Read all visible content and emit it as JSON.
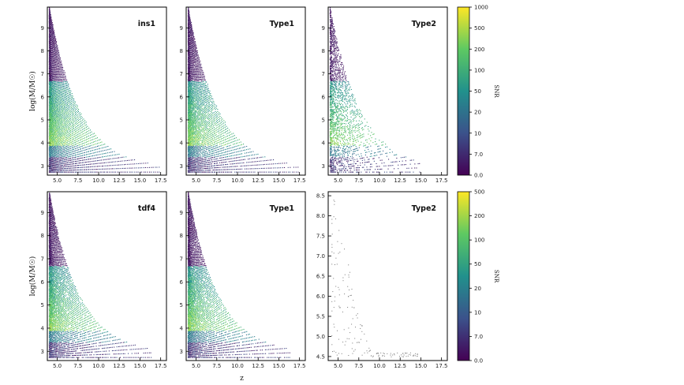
{
  "chart_data": {
    "type": "scatter",
    "x_label": "z",
    "y_label": "log(M/M☉)",
    "colorbar_label": "SNR",
    "colormap": [
      "#440154",
      "#3b528b",
      "#21918c",
      "#5ec962",
      "#fde725"
    ],
    "x_ticks": [
      "5.0",
      "7.5",
      "10.0",
      "12.5",
      "15.0",
      "17.5"
    ],
    "x_lim": [
      3.8,
      18.2
    ],
    "rows": [
      {
        "colorbar": {
          "ticks": [
            "0.0",
            "7.0",
            "10",
            "20",
            "50",
            "100",
            "200",
            "500",
            "1000"
          ]
        },
        "panels": [
          {
            "title": "ins1",
            "y_lim": [
              2.6,
              9.9
            ],
            "y_ticks": [
              "3",
              "4",
              "5",
              "6",
              "7",
              "8",
              "9"
            ],
            "y_tick_values": [
              3,
              4,
              5,
              6,
              7,
              8,
              9
            ],
            "density": 1.0,
            "max_x": 17.5
          },
          {
            "title": "Type1",
            "y_lim": [
              2.6,
              9.9
            ],
            "y_ticks": [
              "3",
              "4",
              "5",
              "6",
              "7",
              "8",
              "9"
            ],
            "y_tick_values": [
              3,
              4,
              5,
              6,
              7,
              8,
              9
            ],
            "density": 0.95,
            "max_x": 17.5
          },
          {
            "title": "Type2",
            "y_lim": [
              2.6,
              9.9
            ],
            "y_ticks": [
              "3",
              "4",
              "5",
              "6",
              "7",
              "8",
              "9"
            ],
            "y_tick_values": [
              3,
              4,
              5,
              6,
              7,
              8,
              9
            ],
            "density": 0.45,
            "max_x": 15.0
          }
        ]
      },
      {
        "colorbar": {
          "ticks": [
            "0.0",
            "7.0",
            "10",
            "20",
            "50",
            "100",
            "200",
            "500"
          ]
        },
        "panels": [
          {
            "title": "tdf4",
            "y_lim": [
              2.6,
              9.9
            ],
            "y_ticks": [
              "3",
              "4",
              "5",
              "6",
              "7",
              "8",
              "9"
            ],
            "y_tick_values": [
              3,
              4,
              5,
              6,
              7,
              8,
              9
            ],
            "density": 0.9,
            "max_x": 16.5
          },
          {
            "title": "Type1",
            "y_lim": [
              2.6,
              9.9
            ],
            "y_ticks": [
              "3",
              "4",
              "5",
              "6",
              "7",
              "8",
              "9"
            ],
            "y_tick_values": [
              3,
              4,
              5,
              6,
              7,
              8,
              9
            ],
            "density": 0.9,
            "max_x": 16.5
          },
          {
            "title": "Type2",
            "y_lim": [
              4.4,
              8.6
            ],
            "y_ticks": [
              "4.5",
              "5.0",
              "5.5",
              "6.0",
              "6.5",
              "7.0",
              "7.5",
              "8.0",
              "8.5"
            ],
            "y_tick_values": [
              4.5,
              5.0,
              5.5,
              6.0,
              6.5,
              7.0,
              7.5,
              8.0,
              8.5
            ],
            "density": 0.02,
            "max_x": 15.0,
            "sparse": true
          }
        ]
      }
    ]
  }
}
